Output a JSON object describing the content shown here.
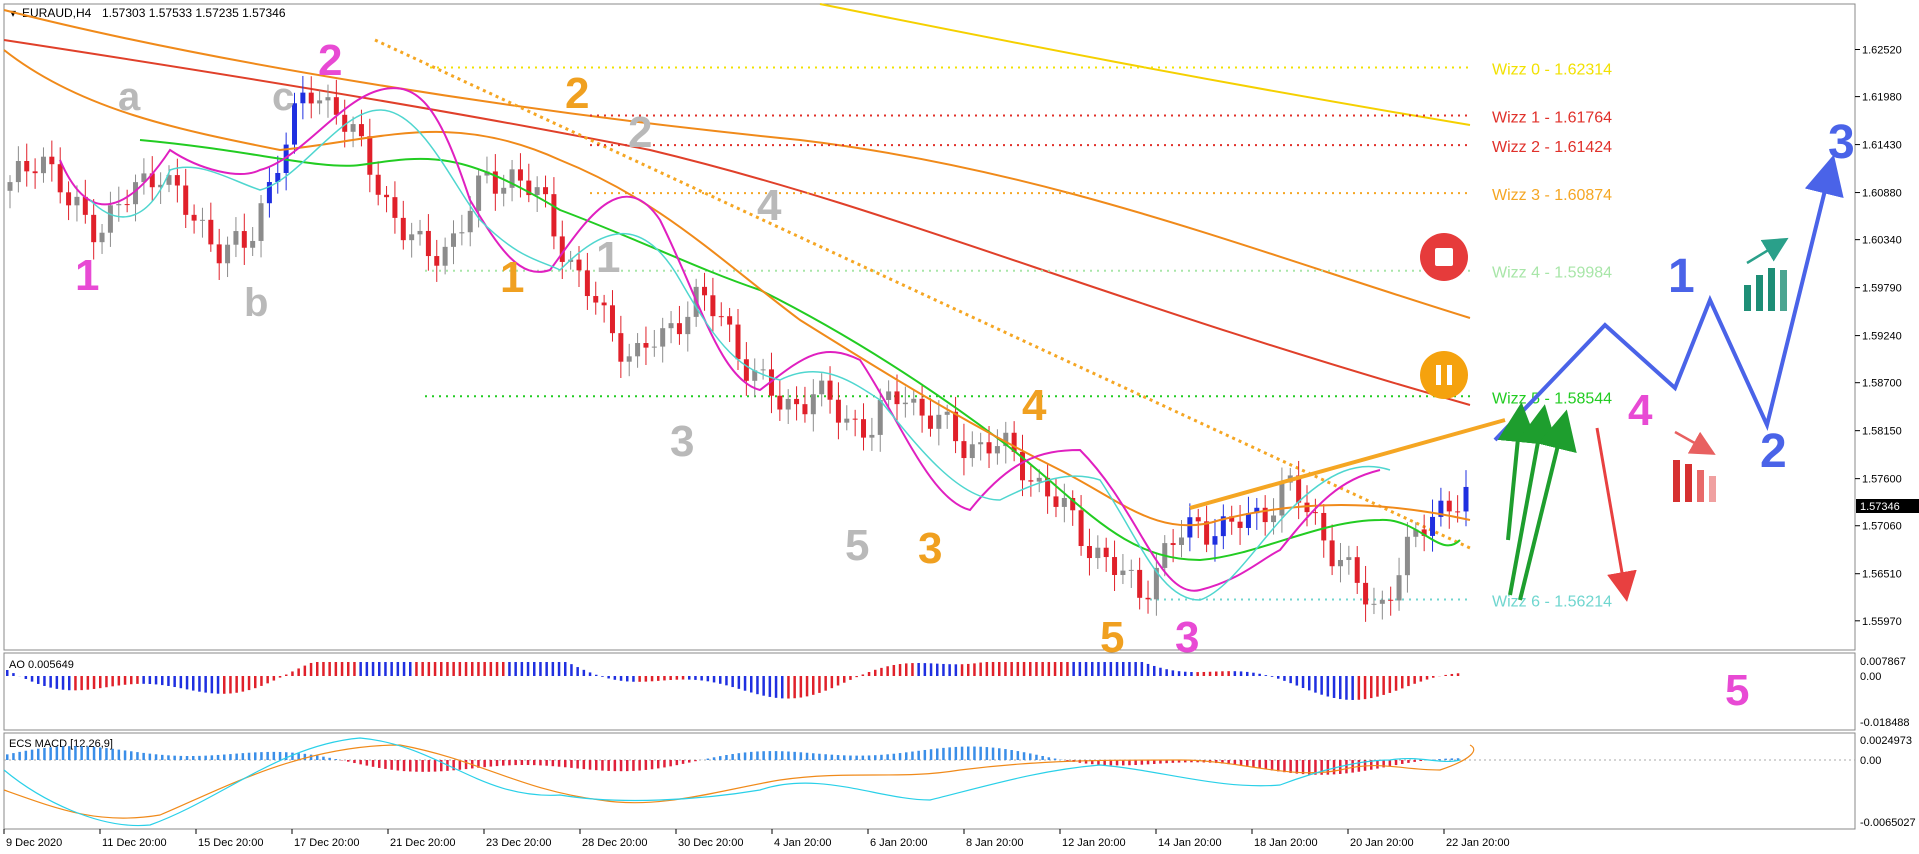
{
  "window": {
    "symbol": "EURAUD,H4",
    "ohlc": "1.57303 1.57533 1.57235 1.57346",
    "current_price": "1.57346"
  },
  "panels": {
    "ao": {
      "label": "AO 0.005649",
      "ticks": [
        "0.007867",
        "0.00",
        "-0.018488"
      ]
    },
    "macd": {
      "label": "ECS MACD [12,26,9]",
      "ticks": [
        "0.0024973",
        "0.00",
        "-0.0065027"
      ]
    }
  },
  "price_axis_ticks": [
    "1.62520",
    "1.61980",
    "1.61430",
    "1.60880",
    "1.60340",
    "1.59790",
    "1.59240",
    "1.58700",
    "1.58150",
    "1.57600",
    "1.57060",
    "1.56510",
    "1.55970"
  ],
  "time_axis_labels": [
    "9 Dec 2020",
    "11 Dec 20:00",
    "15 Dec 20:00",
    "17 Dec 20:00",
    "21 Dec 20:00",
    "23 Dec 20:00",
    "28 Dec 20:00",
    "30 Dec 20:00",
    "4 Jan 20:00",
    "6 Jan 20:00",
    "8 Jan 20:00",
    "12 Jan 20:00",
    "14 Jan 20:00",
    "18 Jan 20:00",
    "20 Jan 20:00",
    "22 Jan 20:00"
  ],
  "wizz_levels": [
    {
      "label": "Wizz 0 - 1.62314",
      "price": 1.62314,
      "color": "#f2e100"
    },
    {
      "label": "Wizz 1 - 1.61764",
      "price": 1.61764,
      "color": "#e0302a"
    },
    {
      "label": "Wizz 2 - 1.61424",
      "price": 1.61424,
      "color": "#e0302a"
    },
    {
      "label": "Wizz 3 - 1.60874",
      "price": 1.60874,
      "color": "#f5a623"
    },
    {
      "label": "Wizz 4 - 1.59984",
      "price": 1.59984,
      "color": "#a8e6a8"
    },
    {
      "label": "Wizz 5 - 1.58544",
      "price": 1.58544,
      "color": "#22cc22"
    },
    {
      "label": "Wizz 6 - 1.56214",
      "price": 1.56214,
      "color": "#6fd6cf"
    }
  ],
  "wave_labels": {
    "pink": [
      "1",
      "2",
      "3",
      "4",
      "5"
    ],
    "grey": [
      "a",
      "b",
      "c",
      "2",
      "1",
      "4",
      "3",
      "5"
    ],
    "orange": [
      "2",
      "1",
      "4",
      "3",
      "5"
    ],
    "blue": [
      "1",
      "2",
      "3"
    ]
  },
  "icons": [
    "stop-icon",
    "pause-icon",
    "bullish-bars-icon",
    "bearish-bars-icon"
  ],
  "chart_data": {
    "type": "candlestick",
    "title": "EURAUD,H4",
    "ylim": [
      1.5575,
      1.6295
    ],
    "trend": [
      1.609,
      1.614,
      1.607,
      1.605,
      1.608,
      1.612,
      1.606,
      1.603,
      1.602,
      1.613,
      1.62,
      1.619,
      1.612,
      1.606,
      1.601,
      1.604,
      1.61,
      1.611,
      1.607,
      1.6,
      1.594,
      1.59,
      1.592,
      1.597,
      1.594,
      1.588,
      1.584,
      1.586,
      1.583,
      1.582,
      1.586,
      1.583,
      1.58,
      1.58,
      1.578,
      1.574,
      1.57,
      1.566,
      1.563,
      1.568,
      1.571,
      1.57,
      1.572,
      1.575,
      1.571,
      1.565,
      1.561,
      1.567,
      1.573,
      1.5735
    ]
  }
}
